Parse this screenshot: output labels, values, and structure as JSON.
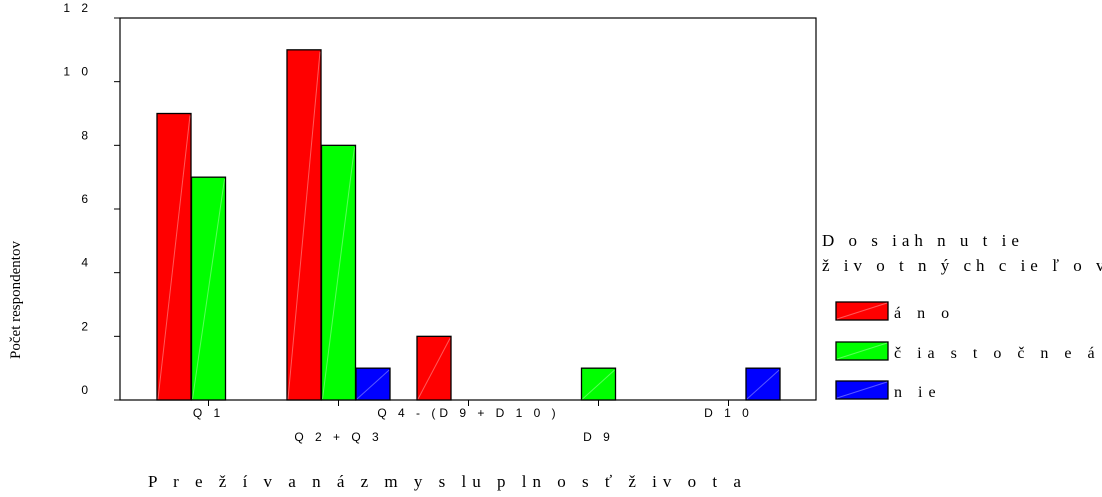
{
  "chart_data": {
    "type": "bar",
    "xlabel": "P r e ž í v a n á  z m y s lu p ln o s ť  ž iv o t a",
    "ylabel": "Počet respondentov",
    "ylim": [
      0,
      12
    ],
    "yticks": [
      "0",
      "2",
      "4",
      "6",
      "8",
      "1 0",
      "1 2"
    ],
    "categories": [
      "Q 1",
      "Q 2 + Q 3",
      "Q 4 - (D 9 + D 1 0 )",
      "D 9",
      "D 1 0"
    ],
    "series": [
      {
        "name": "á n o",
        "color": "#ff0000",
        "values": [
          9,
          11,
          2,
          0,
          0
        ]
      },
      {
        "name": "č ia s t o č n e  á n o",
        "color": "#00ff00",
        "values": [
          7,
          8,
          0,
          1,
          0
        ]
      },
      {
        "name": "n ie",
        "color": "#0000ff",
        "values": [
          0,
          1,
          0,
          0,
          1
        ]
      }
    ],
    "legend": {
      "title_lines": [
        "D o s iah n u t ie",
        "ž iv o t n ý ch  c ie ľ o v"
      ],
      "position": "right"
    },
    "grid": false
  }
}
